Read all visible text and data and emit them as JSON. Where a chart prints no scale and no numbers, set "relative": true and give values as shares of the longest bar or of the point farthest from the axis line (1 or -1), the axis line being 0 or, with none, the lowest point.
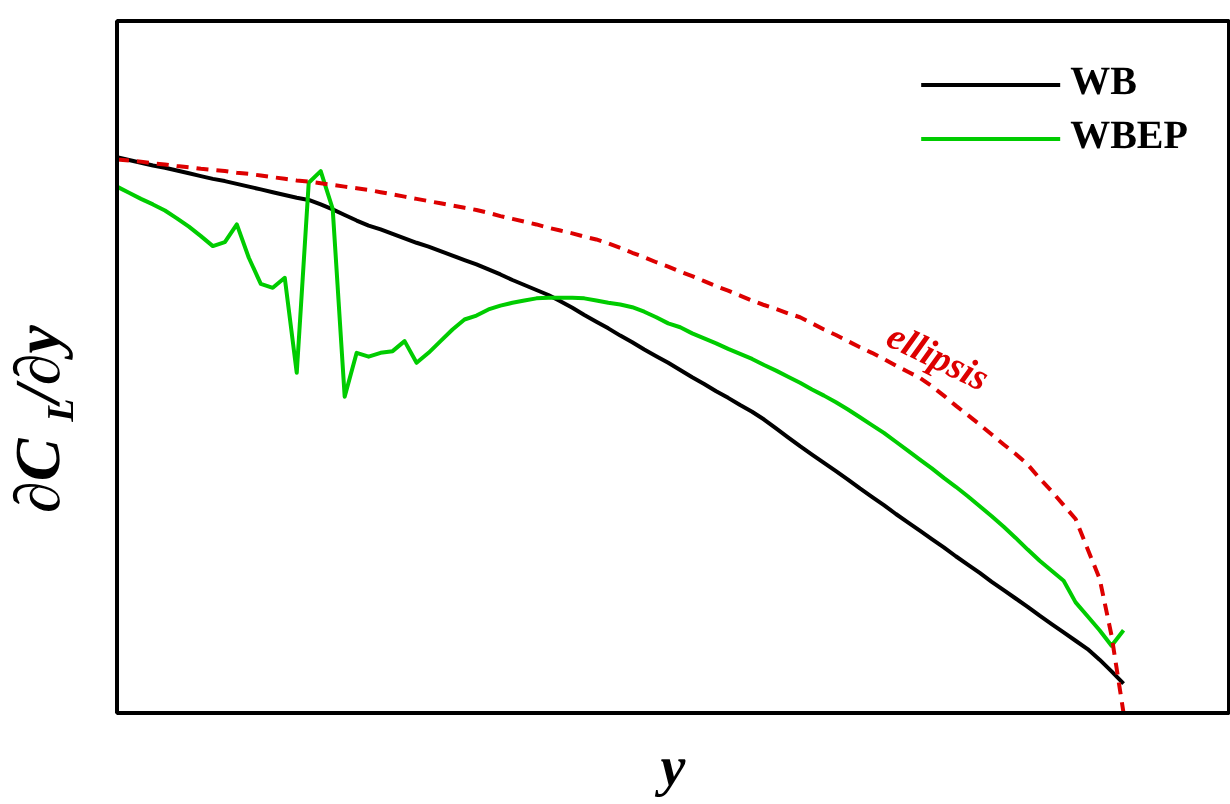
{
  "chart_data": {
    "type": "line",
    "relative": true,
    "xlabel": "y",
    "ylabel": "∂C$_{L}$/∂y",
    "legend": "top right",
    "grid": false,
    "categories": [
      null,
      null,
      null,
      null,
      null,
      null,
      null,
      null,
      null,
      null,
      null,
      null,
      null,
      null,
      null,
      null,
      null,
      null,
      null,
      null,
      null,
      null,
      null,
      null,
      null,
      null,
      null,
      null,
      null,
      null,
      null,
      null,
      null,
      null,
      null,
      null,
      null,
      null,
      null,
      null,
      null,
      null,
      null,
      null,
      null,
      null,
      null,
      null,
      null,
      null,
      null,
      null,
      null,
      null,
      null,
      null,
      null,
      null,
      null,
      null,
      null,
      null,
      null,
      null,
      null,
      null,
      null,
      null,
      null,
      null,
      null,
      null,
      null,
      null,
      null,
      null,
      null,
      null,
      null,
      null,
      null,
      null,
      null,
      null,
      null,
      null,
      null,
      null,
      null,
      null,
      null,
      null,
      null
    ],
    "series": [
      {
        "name": "WB",
        "color": "#000000",
        "line_style": "solid",
        "values": [
          1.0,
          0.995,
          0.99,
          0.985,
          0.981,
          0.976,
          0.971,
          0.966,
          0.961,
          0.957,
          0.952,
          0.947,
          0.942,
          0.937,
          0.932,
          0.927,
          0.923,
          0.915,
          0.906,
          0.896,
          0.886,
          0.877,
          0.87,
          0.862,
          0.854,
          0.846,
          0.839,
          0.831,
          0.823,
          0.815,
          0.807,
          0.798,
          0.789,
          0.779,
          0.77,
          0.761,
          0.752,
          0.741,
          0.729,
          0.716,
          0.704,
          0.692,
          0.679,
          0.667,
          0.654,
          0.642,
          0.63,
          0.617,
          0.604,
          0.592,
          0.579,
          0.567,
          0.554,
          0.542,
          0.528,
          0.512,
          0.496,
          0.48,
          0.465,
          0.45,
          0.435,
          0.42,
          0.404,
          0.389,
          0.374,
          0.358,
          0.343,
          0.328,
          0.313,
          0.298,
          0.282,
          0.267,
          0.252,
          0.236,
          0.221,
          0.206,
          0.191,
          0.175,
          0.16,
          0.145,
          0.13,
          0.115,
          0.096,
          0.075,
          0.053,
          null,
          null,
          null,
          null,
          null,
          null,
          null,
          null
        ]
      },
      {
        "name": "WBEP",
        "color": "#00cc00",
        "line_style": "solid",
        "values": [
          0.947,
          0.936,
          0.925,
          0.915,
          0.904,
          0.89,
          0.875,
          0.858,
          0.84,
          0.847,
          0.879,
          0.819,
          0.772,
          0.765,
          0.783,
          0.612,
          0.954,
          0.975,
          0.907,
          0.569,
          0.648,
          0.641,
          0.648,
          0.651,
          0.669,
          0.63,
          0.648,
          0.669,
          0.69,
          0.708,
          0.715,
          0.726,
          0.733,
          0.738,
          0.742,
          0.746,
          0.747,
          0.747,
          0.747,
          0.746,
          0.742,
          0.738,
          0.735,
          0.73,
          0.722,
          0.712,
          0.701,
          0.694,
          0.683,
          0.674,
          0.665,
          0.655,
          0.646,
          0.637,
          0.626,
          0.616,
          0.605,
          0.594,
          0.582,
          0.571,
          0.559,
          0.546,
          0.532,
          0.518,
          0.504,
          0.488,
          0.472,
          0.456,
          0.44,
          0.423,
          0.407,
          0.39,
          0.372,
          0.354,
          0.335,
          0.315,
          0.294,
          0.274,
          0.256,
          0.238,
          0.199,
          0.174,
          0.149,
          0.121,
          0.149,
          null,
          null,
          null,
          null,
          null,
          null,
          null,
          null
        ]
      },
      {
        "name": "ellipsis",
        "color": "#dd0000",
        "line_style": "dashed",
        "values": [
          0.996,
          0.994,
          0.992,
          0.989,
          0.987,
          0.984,
          0.982,
          0.979,
          0.977,
          0.975,
          0.972,
          0.97,
          0.967,
          0.964,
          0.961,
          0.958,
          0.956,
          0.953,
          0.95,
          0.947,
          0.944,
          0.941,
          0.937,
          0.933,
          0.929,
          0.925,
          0.921,
          0.917,
          0.913,
          0.909,
          0.905,
          0.9,
          0.894,
          0.889,
          0.884,
          0.879,
          0.873,
          0.868,
          0.863,
          0.857,
          0.852,
          0.845,
          0.837,
          0.828,
          0.82,
          0.811,
          0.803,
          0.794,
          0.786,
          0.777,
          0.768,
          0.76,
          0.751,
          0.742,
          0.734,
          0.727,
          0.719,
          0.712,
          0.701,
          0.69,
          0.68,
          0.669,
          0.658,
          0.648,
          0.637,
          0.625,
          0.614,
          0.603,
          0.588,
          0.571,
          0.553,
          0.536,
          0.519,
          0.501,
          0.483,
          0.466,
          0.447,
          0.422,
          0.399,
          0.374,
          0.349,
          0.295,
          0.242,
          0.139,
          0.0,
          null,
          null,
          null,
          null,
          null,
          null,
          null,
          null
        ]
      }
    ]
  }
}
